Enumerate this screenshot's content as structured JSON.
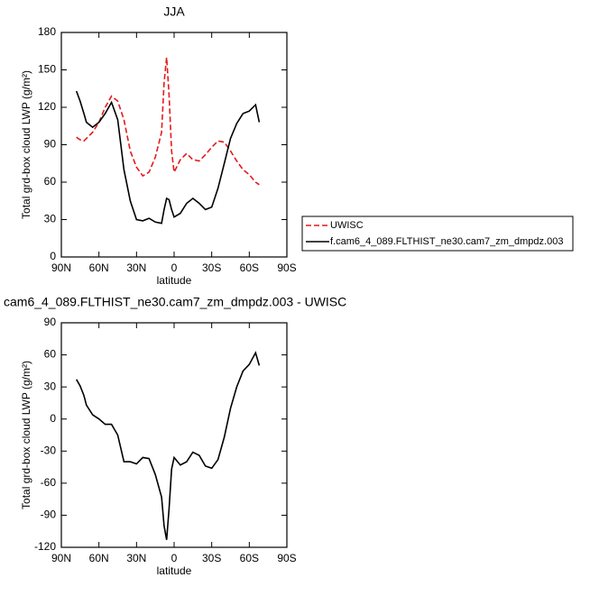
{
  "chart_data": [
    {
      "type": "line",
      "title": "JJA",
      "xlabel": "latitude",
      "ylabel": "Total grd-box cloud LWP (g/m²)",
      "x": [
        78,
        75,
        72,
        70,
        65,
        60,
        55,
        50,
        45,
        40,
        35,
        30,
        25,
        20,
        15,
        10,
        8,
        6,
        4,
        2,
        0,
        -5,
        -10,
        -15,
        -20,
        -25,
        -30,
        -35,
        -40,
        -45,
        -50,
        -55,
        -60,
        -65,
        -68
      ],
      "series": [
        {
          "name": "UWISC",
          "color": "#e41a1c",
          "line_style": "dashed",
          "values": [
            96,
            94,
            93,
            95,
            100,
            108,
            120,
            129,
            125,
            110,
            85,
            72,
            65,
            68,
            80,
            100,
            140,
            160,
            130,
            85,
            68,
            78,
            83,
            78,
            77,
            82,
            88,
            93,
            92,
            85,
            77,
            70,
            66,
            60,
            58
          ]
        },
        {
          "name": "f.cam6_4_089.FLTHIST_ne30.cam7_zm_dmpdz.003",
          "color": "#000000",
          "line_style": "solid",
          "values": [
            133,
            125,
            115,
            108,
            104,
            108,
            115,
            124,
            110,
            70,
            45,
            30,
            29,
            31,
            28,
            27,
            38,
            47,
            46,
            38,
            32,
            35,
            43,
            47,
            43,
            38,
            40,
            55,
            75,
            95,
            107,
            115,
            117,
            122,
            108
          ]
        }
      ],
      "xlim": [
        90,
        -90
      ],
      "xticks": [
        {
          "value": 90,
          "label": "90N"
        },
        {
          "value": 60,
          "label": "60N"
        },
        {
          "value": 30,
          "label": "30N"
        },
        0,
        {
          "value": -30,
          "label": "30S"
        },
        {
          "value": -60,
          "label": "60S"
        },
        {
          "value": -90,
          "label": "90S"
        }
      ],
      "ylim": [
        0,
        180
      ],
      "yticks": [
        0,
        30,
        60,
        90,
        120,
        150,
        180
      ],
      "legend": "outside-right"
    },
    {
      "type": "line",
      "title": "cam6_4_089.FLTHIST_ne30.cam7_zm_dmpdz.003 - UWISC",
      "xlabel": "latitude",
      "ylabel": "Total grd-box cloud LWP (g/m²)",
      "x": [
        78,
        75,
        72,
        70,
        65,
        60,
        55,
        50,
        45,
        40,
        35,
        30,
        25,
        20,
        15,
        10,
        8,
        6,
        4,
        2,
        0,
        -5,
        -10,
        -15,
        -20,
        -25,
        -30,
        -35,
        -40,
        -45,
        -50,
        -55,
        -60,
        -65,
        -68
      ],
      "color": "#000000",
      "values": [
        37,
        31,
        22,
        13,
        4,
        0,
        -5,
        -5,
        -15,
        -40,
        -40,
        -42,
        -36,
        -37,
        -52,
        -73,
        -100,
        -113,
        -84,
        -47,
        -36,
        -43,
        -40,
        -31,
        -34,
        -44,
        -46,
        -38,
        -17,
        10,
        30,
        45,
        51,
        62,
        50
      ],
      "xlim": [
        90,
        -90
      ],
      "xticks": [
        {
          "value": 90,
          "label": "90N"
        },
        {
          "value": 60,
          "label": "60N"
        },
        {
          "value": 30,
          "label": "30N"
        },
        0,
        {
          "value": -30,
          "label": "30S"
        },
        {
          "value": -60,
          "label": "60S"
        },
        {
          "value": -90,
          "label": "90S"
        }
      ],
      "ylim": [
        -120,
        90
      ],
      "yticks": [
        -120,
        -90,
        -60,
        -30,
        0,
        30,
        60,
        90
      ]
    }
  ]
}
